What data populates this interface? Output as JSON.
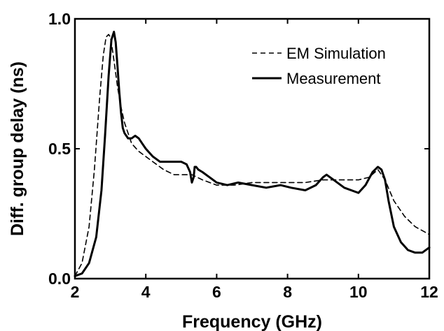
{
  "chart_data": {
    "type": "line",
    "title": "",
    "xlabel": "Frequency (GHz)",
    "ylabel": "Diff. group delay (ns)",
    "xlim": [
      2,
      12
    ],
    "ylim": [
      0,
      1.0
    ],
    "xticks": [
      2,
      4,
      6,
      8,
      10,
      12
    ],
    "xtick_labels": [
      "2",
      "4",
      "6",
      "8",
      "10",
      "12"
    ],
    "yticks": [
      0,
      0.5,
      1.0
    ],
    "ytick_labels": [
      "0.0",
      "0.5",
      "1.0"
    ],
    "grid": false,
    "legend": {
      "position": "top-right"
    },
    "series": [
      {
        "name": "EM Simulation",
        "style": "dashed",
        "color": "#000000",
        "x": [
          2.0,
          2.2,
          2.4,
          2.55,
          2.7,
          2.8,
          2.88,
          2.95,
          3.0,
          3.05,
          3.1,
          3.15,
          3.2,
          3.3,
          3.4,
          3.5,
          3.6,
          3.8,
          4.0,
          4.2,
          4.5,
          4.8,
          5.0,
          5.3,
          5.6,
          6.0,
          6.5,
          7.0,
          7.5,
          8.0,
          8.5,
          9.0,
          9.5,
          10.0,
          10.3,
          10.55,
          10.75,
          11.0,
          11.3,
          11.6,
          12.0
        ],
        "y": [
          0.01,
          0.06,
          0.2,
          0.42,
          0.7,
          0.86,
          0.93,
          0.94,
          0.93,
          0.89,
          0.84,
          0.79,
          0.74,
          0.66,
          0.6,
          0.56,
          0.52,
          0.49,
          0.47,
          0.45,
          0.42,
          0.4,
          0.4,
          0.4,
          0.38,
          0.36,
          0.36,
          0.37,
          0.37,
          0.37,
          0.37,
          0.38,
          0.38,
          0.38,
          0.39,
          0.42,
          0.38,
          0.3,
          0.24,
          0.2,
          0.17
        ]
      },
      {
        "name": "Measurement",
        "style": "solid",
        "color": "#000000",
        "x": [
          2.0,
          2.2,
          2.4,
          2.6,
          2.75,
          2.85,
          2.95,
          3.03,
          3.1,
          3.15,
          3.2,
          3.25,
          3.3,
          3.35,
          3.4,
          3.5,
          3.6,
          3.7,
          3.8,
          3.9,
          4.0,
          4.2,
          4.4,
          4.6,
          4.8,
          5.0,
          5.15,
          5.25,
          5.3,
          5.35,
          5.38,
          5.42,
          5.48,
          5.6,
          5.8,
          6.0,
          6.3,
          6.6,
          7.0,
          7.4,
          7.8,
          8.1,
          8.5,
          8.8,
          9.0,
          9.1,
          9.3,
          9.6,
          10.0,
          10.2,
          10.4,
          10.55,
          10.65,
          10.75,
          10.85,
          11.0,
          11.2,
          11.4,
          11.6,
          11.8,
          12.0
        ],
        "y": [
          0.01,
          0.02,
          0.06,
          0.16,
          0.34,
          0.55,
          0.78,
          0.92,
          0.95,
          0.91,
          0.82,
          0.72,
          0.64,
          0.58,
          0.56,
          0.54,
          0.54,
          0.55,
          0.54,
          0.52,
          0.5,
          0.47,
          0.45,
          0.45,
          0.45,
          0.45,
          0.44,
          0.41,
          0.37,
          0.39,
          0.43,
          0.43,
          0.42,
          0.41,
          0.39,
          0.37,
          0.36,
          0.37,
          0.36,
          0.35,
          0.36,
          0.35,
          0.34,
          0.36,
          0.39,
          0.4,
          0.38,
          0.35,
          0.33,
          0.36,
          0.41,
          0.43,
          0.42,
          0.38,
          0.3,
          0.2,
          0.14,
          0.11,
          0.1,
          0.1,
          0.12
        ]
      }
    ]
  }
}
